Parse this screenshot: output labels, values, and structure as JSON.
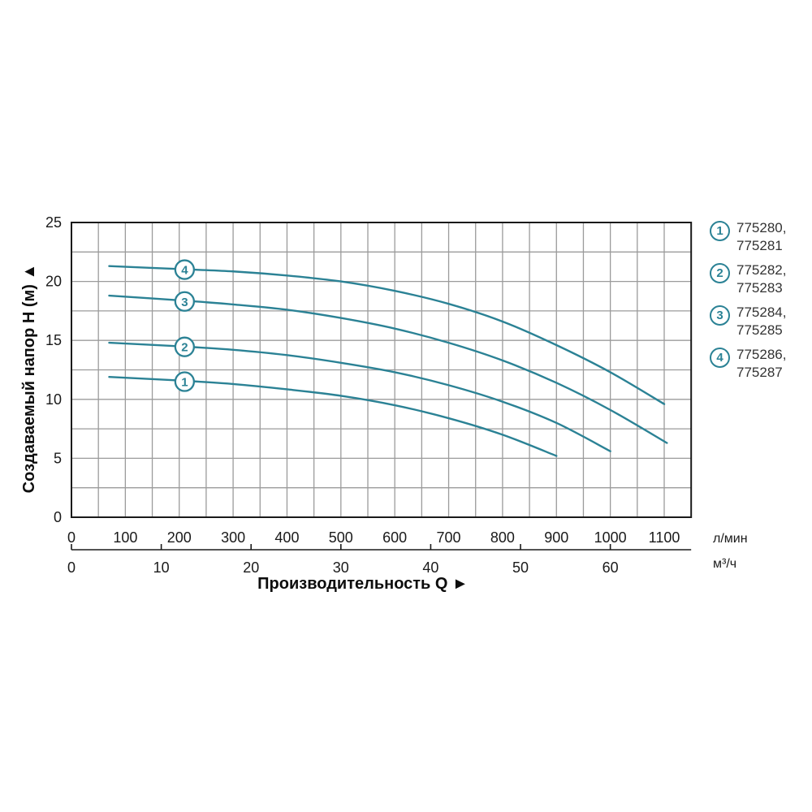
{
  "chart": {
    "y_axis_title": "Создаваемый напор H (м) ▲",
    "x_axis_title": "Производительность Q ►",
    "unit_primary": "л/мин",
    "unit_secondary": "м³/ч"
  },
  "colors": {
    "curve": "#2b8295",
    "grid": "#9b9b9b",
    "axis": "#1a1a1a",
    "legend_text": "#333333",
    "background": "#ffffff"
  },
  "chart_data": {
    "type": "line",
    "title": "",
    "xlabel": "Производительность Q",
    "ylabel": "Создаваемый напор H (м)",
    "x_unit_primary": "л/мин",
    "x_unit_secondary": "м³/ч",
    "xlim_lmin": [
      0,
      1150
    ],
    "ylim": [
      0,
      25
    ],
    "x_ticks_lmin": [
      0,
      100,
      200,
      300,
      400,
      500,
      600,
      700,
      800,
      900,
      1000,
      1100
    ],
    "x_ticks_m3h": [
      0,
      10,
      20,
      30,
      40,
      50,
      60
    ],
    "y_ticks": [
      0,
      5,
      10,
      15,
      20,
      25
    ],
    "grid": {
      "x_step_lmin": 50,
      "y_step_m": 2.5,
      "visible": true
    },
    "legend_position": "right",
    "series": [
      {
        "number": "1",
        "models": "775280,\n775281",
        "badge_at": {
          "q": 210,
          "h": 11.5
        },
        "points": [
          [
            70,
            11.9
          ],
          [
            200,
            11.6
          ],
          [
            300,
            11.3
          ],
          [
            400,
            10.85
          ],
          [
            500,
            10.3
          ],
          [
            600,
            9.5
          ],
          [
            700,
            8.4
          ],
          [
            800,
            7.0
          ],
          [
            900,
            5.2
          ]
        ]
      },
      {
        "number": "2",
        "models": "775282,\n775283",
        "badge_at": {
          "q": 210,
          "h": 14.45
        },
        "points": [
          [
            70,
            14.8
          ],
          [
            200,
            14.5
          ],
          [
            300,
            14.2
          ],
          [
            400,
            13.75
          ],
          [
            500,
            13.1
          ],
          [
            600,
            12.3
          ],
          [
            700,
            11.2
          ],
          [
            800,
            9.8
          ],
          [
            900,
            8.0
          ],
          [
            1000,
            5.6
          ]
        ]
      },
      {
        "number": "3",
        "models": "775284,\n775285",
        "badge_at": {
          "q": 210,
          "h": 18.3
        },
        "points": [
          [
            70,
            18.8
          ],
          [
            200,
            18.4
          ],
          [
            300,
            18.05
          ],
          [
            400,
            17.6
          ],
          [
            500,
            16.9
          ],
          [
            600,
            16.0
          ],
          [
            700,
            14.8
          ],
          [
            800,
            13.3
          ],
          [
            900,
            11.4
          ],
          [
            1000,
            9.1
          ],
          [
            1105,
            6.3
          ]
        ]
      },
      {
        "number": "4",
        "models": "775286,\n775287",
        "badge_at": {
          "q": 210,
          "h": 21.0
        },
        "points": [
          [
            70,
            21.3
          ],
          [
            200,
            21.05
          ],
          [
            300,
            20.85
          ],
          [
            400,
            20.5
          ],
          [
            500,
            20.0
          ],
          [
            600,
            19.2
          ],
          [
            700,
            18.1
          ],
          [
            800,
            16.6
          ],
          [
            900,
            14.6
          ],
          [
            1000,
            12.3
          ],
          [
            1100,
            9.6
          ]
        ]
      }
    ]
  }
}
